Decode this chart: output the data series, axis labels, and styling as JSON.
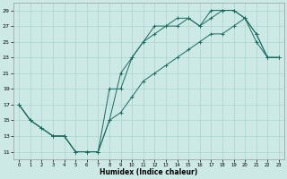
{
  "bg_color": "#cce9e6",
  "grid_color": "#aad4cf",
  "line_color": "#1a6b60",
  "xlabel": "Humidex (Indice chaleur)",
  "xlim": [
    -0.5,
    23.5
  ],
  "ylim": [
    10.0,
    30.0
  ],
  "yticks": [
    11,
    13,
    15,
    17,
    19,
    21,
    23,
    25,
    27,
    29
  ],
  "xticks": [
    0,
    1,
    2,
    3,
    4,
    5,
    6,
    7,
    8,
    9,
    10,
    11,
    12,
    13,
    14,
    15,
    16,
    17,
    18,
    19,
    20,
    21,
    22,
    23
  ],
  "lines": [
    [
      17,
      15,
      14,
      13,
      13,
      11,
      11,
      11,
      19,
      19,
      23,
      25,
      27,
      27,
      28,
      28,
      27,
      29,
      29,
      29,
      28,
      26,
      23,
      23
    ],
    [
      17,
      15,
      14,
      13,
      13,
      11,
      11,
      11,
      15,
      21,
      23,
      25,
      26,
      27,
      27,
      28,
      27,
      28,
      29,
      29,
      28,
      26,
      23,
      23
    ],
    [
      17,
      15,
      14,
      13,
      13,
      11,
      11,
      11,
      15,
      16,
      18,
      20,
      21,
      22,
      23,
      24,
      25,
      26,
      26,
      27,
      28,
      25,
      23,
      23
    ]
  ]
}
